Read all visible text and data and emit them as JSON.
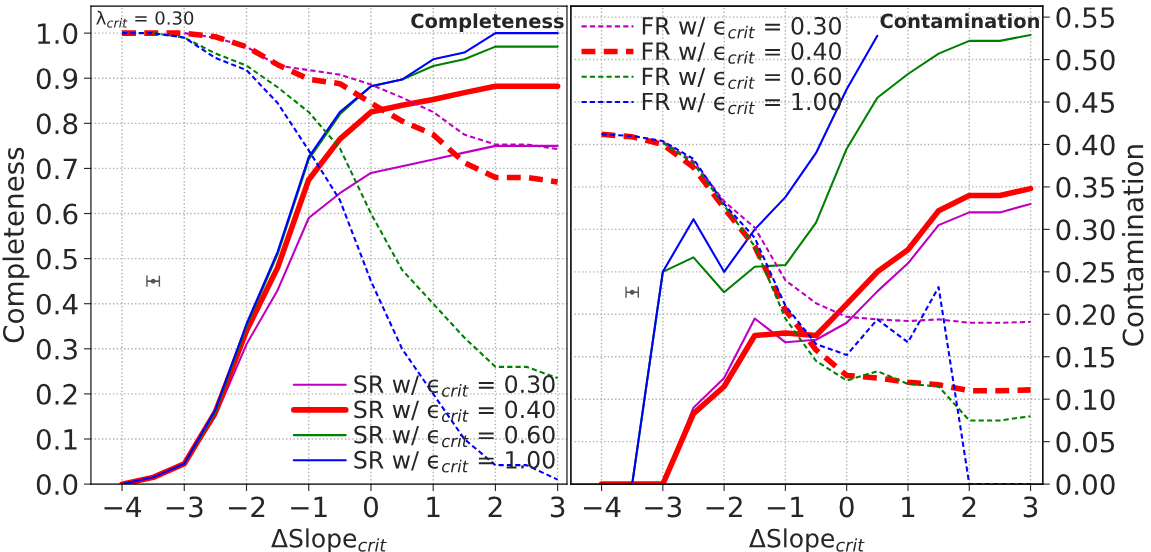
{
  "chart_data": [
    {
      "type": "line",
      "title": "Completeness",
      "xlabel": "ΔSlope$_{crit}$",
      "ylabel": "Completeness",
      "annotations": [
        "λ$_{crit}$ = 0.30"
      ],
      "x": [
        -4,
        -3.5,
        -3,
        -2.5,
        -2,
        -1.5,
        -1,
        -0.5,
        0,
        0.5,
        1,
        1.5,
        2,
        2.5,
        3
      ],
      "xlim": [
        -4.5,
        3.15
      ],
      "xticks": [
        {
          "value": -4,
          "label": "−4"
        },
        {
          "value": -3,
          "label": "−3"
        },
        {
          "value": -2,
          "label": "−2"
        },
        {
          "value": -1,
          "label": "−1"
        },
        0,
        1,
        2,
        3
      ],
      "ylim": [
        0,
        1.06
      ],
      "yticks": [
        {
          "value": 0,
          "label": "0.0"
        },
        0.1,
        0.2,
        0.3,
        0.4,
        0.5,
        0.6,
        0.7,
        0.8,
        0.9,
        {
          "value": 1,
          "label": "1.0"
        }
      ],
      "grid": true,
      "legend": "bottom right",
      "marker": "none",
      "series": [
        {
          "name": "SR w/ ϵ$_{crit}$ = 0.30",
          "color": "#bf00bf",
          "line_style": "solid",
          "values": [
            null,
            null,
            0.043,
            0.15,
            0.31,
            0.43,
            0.59,
            0.645,
            0.69,
            0.705,
            0.72,
            0.735,
            0.75,
            0.75,
            0.75
          ]
        },
        {
          "name": "SR w/ ϵ$_{crit}$ = 0.40",
          "color": "#ff0000",
          "line_style": "solid",
          "values": [
            0,
            0.015,
            0.045,
            0.16,
            0.34,
            0.48,
            0.675,
            0.765,
            0.825,
            0.84,
            0.853,
            0.868,
            0.882,
            0.882,
            0.882
          ]
        },
        {
          "name": "SR w/ ϵ$_{crit}$ = 0.60",
          "color": "#008000",
          "line_style": "solid",
          "values": [
            null,
            null,
            0.045,
            0.16,
            0.35,
            0.51,
            0.72,
            0.82,
            0.882,
            0.897,
            0.927,
            0.942,
            0.97,
            0.97,
            0.97
          ]
        },
        {
          "name": "SR w/ ϵ$_{crit}$ = 1.00",
          "color": "#0000ff",
          "line_style": "solid",
          "values": [
            0,
            0.015,
            0.045,
            0.165,
            0.355,
            0.515,
            0.725,
            0.825,
            0.882,
            0.897,
            0.942,
            0.957,
            1.0,
            1.0,
            1.0
          ]
        },
        {
          "color": "#bf00bf",
          "line_style": "dashed",
          "values": [
            null,
            null,
            1.0,
            0.99,
            0.97,
            0.928,
            0.918,
            0.908,
            0.886,
            0.857,
            0.825,
            0.775,
            0.753,
            0.753,
            0.743
          ]
        },
        {
          "color": "#ff0000",
          "line_style": "dashed",
          "values": [
            1.0,
            1.0,
            1.0,
            0.992,
            0.97,
            0.93,
            0.898,
            0.888,
            0.845,
            0.805,
            0.775,
            0.713,
            0.68,
            0.68,
            0.67
          ]
        },
        {
          "color": "#008000",
          "line_style": "dashed",
          "values": [
            null,
            1.0,
            0.99,
            0.955,
            0.928,
            0.88,
            0.825,
            0.745,
            0.6,
            0.475,
            0.4,
            0.325,
            0.26,
            0.26,
            0.235
          ]
        },
        {
          "color": "#0000ff",
          "line_style": "dashed",
          "values": [
            1.0,
            1.0,
            0.99,
            0.945,
            0.918,
            0.845,
            0.74,
            0.63,
            0.45,
            0.3,
            0.2,
            0.1,
            0.042,
            0.042,
            0.01
          ]
        },
        {
          "type": "scatter",
          "color": "#555555",
          "x": [
            -3.5
          ],
          "values": [
            0.45
          ],
          "xerrors": [
            0.1
          ]
        }
      ]
    },
    {
      "type": "line",
      "title": "Contamination",
      "xlabel": "ΔSlope$_{crit}$",
      "y2label": "Contamination",
      "x": [
        -4,
        -3.5,
        -3,
        -2.5,
        -2,
        -1.5,
        -1,
        -0.5,
        0,
        0.5,
        1,
        1.5,
        2,
        2.5,
        3
      ],
      "xlim": [
        -4.5,
        3.2
      ],
      "xticks": [
        {
          "value": -4,
          "label": "−4"
        },
        {
          "value": -3,
          "label": "−3"
        },
        {
          "value": -2,
          "label": "−2"
        },
        {
          "value": -1,
          "label": "−1"
        },
        0,
        1,
        2,
        3
      ],
      "y2lim": [
        0,
        0.563
      ],
      "y2ticks": [
        {
          "value": 0,
          "label": "0.00"
        },
        0.05,
        {
          "value": 0.1,
          "label": "0.10"
        },
        0.15,
        {
          "value": 0.2,
          "label": "0.20"
        },
        0.25,
        {
          "value": 0.3,
          "label": "0.30"
        },
        0.35,
        {
          "value": 0.4,
          "label": "0.40"
        },
        0.45,
        {
          "value": 0.5,
          "label": "0.50"
        },
        0.55
      ],
      "grid": true,
      "legend": "top left",
      "marker": "none",
      "series": [
        {
          "axis": "y2",
          "color": "#bf00bf",
          "line_style": "solid",
          "values": [
            null,
            null,
            0,
            0.09,
            0.125,
            0.195,
            0.167,
            0.17,
            0.19,
            0.227,
            0.26,
            0.305,
            0.32,
            0.32,
            0.33
          ]
        },
        {
          "axis": "y2",
          "color": "#ff0000",
          "line_style": "solid",
          "values": [
            0,
            0,
            0,
            0.083,
            0.115,
            0.175,
            0.178,
            0.175,
            0.212,
            0.25,
            0.276,
            0.322,
            0.34,
            0.34,
            0.348
          ]
        },
        {
          "axis": "y2",
          "color": "#008000",
          "line_style": "solid",
          "values": [
            0,
            0,
            0.25,
            0.267,
            0.226,
            0.256,
            0.258,
            0.308,
            0.395,
            0.455,
            0.483,
            0.507,
            0.522,
            0.522,
            0.529
          ]
        },
        {
          "axis": "y2",
          "color": "#0000ff",
          "line_style": "solid",
          "values": [
            0,
            0,
            0.25,
            0.312,
            0.25,
            0.3,
            0.338,
            0.39,
            0.465,
            0.528,
            null,
            null,
            null,
            null,
            null
          ]
        },
        {
          "axis": "y2",
          "name": "FR w/ ϵ$_{crit}$ = 0.30",
          "color": "#bf00bf",
          "line_style": "dashed",
          "values": [
            null,
            null,
            0.403,
            0.38,
            0.333,
            0.302,
            0.24,
            0.213,
            0.197,
            0.194,
            0.192,
            0.194,
            0.19,
            0.19,
            0.191
          ]
        },
        {
          "axis": "y2",
          "name": "FR w/ ϵ$_{crit}$ = 0.40",
          "color": "#ff0000",
          "line_style": "dashed",
          "values": [
            0.412,
            0.409,
            0.4,
            0.373,
            0.325,
            0.28,
            0.205,
            0.158,
            0.128,
            0.125,
            0.12,
            0.117,
            0.11,
            0.11,
            0.111
          ]
        },
        {
          "axis": "y2",
          "name": "FR w/ ϵ$_{crit}$ = 0.60",
          "color": "#008000",
          "line_style": "dashed",
          "values": [
            null,
            null,
            0.402,
            0.378,
            0.328,
            0.28,
            0.195,
            0.145,
            0.122,
            0.133,
            0.118,
            0.115,
            0.075,
            0.075,
            0.08
          ]
        },
        {
          "axis": "y2",
          "name": "FR w/ ϵ$_{crit}$ = 1.00",
          "color": "#0000ff",
          "line_style": "dashed",
          "values": [
            0.412,
            0.41,
            0.404,
            0.383,
            0.33,
            0.29,
            0.21,
            0.165,
            0.152,
            0.194,
            0.167,
            0.232,
            0,
            0,
            0
          ]
        },
        {
          "type": "scatter",
          "axis": "y2",
          "color": "#555555",
          "x": [
            -3.5
          ],
          "values": [
            0.226
          ],
          "xerrors": [
            0.1
          ]
        }
      ]
    }
  ]
}
